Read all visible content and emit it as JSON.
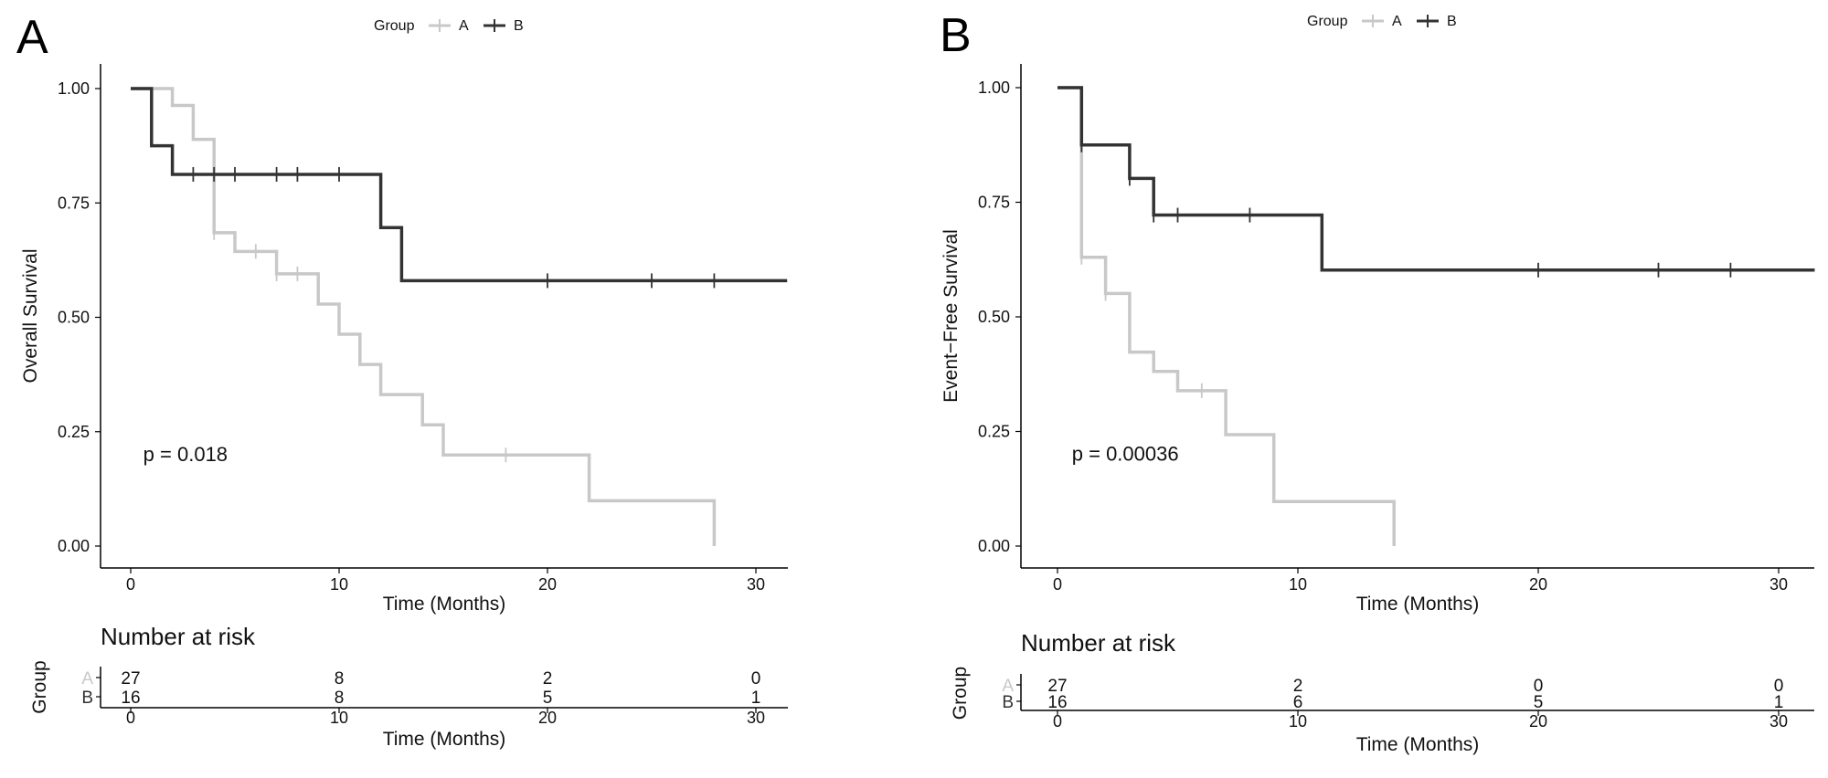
{
  "figure": {
    "colors": {
      "A": "#c8c8c8",
      "B": "#333333",
      "axis": "#000000",
      "text": "#111111"
    }
  },
  "chart_data": [
    {
      "type": "line",
      "step": true,
      "panel_label": "A",
      "ylabel": "Overall Survival",
      "xlabel": "Time (Months)",
      "x_ticks": [
        0,
        10,
        20,
        30
      ],
      "y_ticks": [
        "0.00",
        "0.25",
        "0.50",
        "0.75",
        "1.00"
      ],
      "xlim": [
        -1.5,
        31.5
      ],
      "ylim": [
        -0.05,
        1.05
      ],
      "legend": {
        "title": "Group",
        "position": "top",
        "entries": [
          "A",
          "B"
        ]
      },
      "pvalue": "p = 0.018",
      "series": [
        {
          "name": "A",
          "steps": [
            [
              0,
              1.0
            ],
            [
              2,
              0.963
            ],
            [
              3,
              0.889
            ],
            [
              4,
              0.685
            ],
            [
              5,
              0.644
            ],
            [
              7,
              0.595
            ],
            [
              9,
              0.529
            ],
            [
              10,
              0.463
            ],
            [
              11,
              0.397
            ],
            [
              12,
              0.331
            ],
            [
              14,
              0.265
            ],
            [
              15,
              0.199
            ],
            [
              22,
              0.099
            ],
            [
              28,
              0.0
            ]
          ],
          "end": 28,
          "censors": [
            [
              4,
              0.685
            ],
            [
              6,
              0.644
            ],
            [
              7,
              0.595
            ],
            [
              8,
              0.595
            ],
            [
              18,
              0.199
            ]
          ]
        },
        {
          "name": "B",
          "steps": [
            [
              0,
              1.0
            ],
            [
              1,
              0.875
            ],
            [
              2,
              0.8125
            ],
            [
              12,
              0.696
            ],
            [
              13,
              0.58
            ]
          ],
          "end": 31.5,
          "censors": [
            [
              3,
              0.8125
            ],
            [
              4,
              0.8125
            ],
            [
              5,
              0.8125
            ],
            [
              7,
              0.8125
            ],
            [
              8,
              0.8125
            ],
            [
              10,
              0.8125
            ],
            [
              20,
              0.58
            ],
            [
              25,
              0.58
            ],
            [
              28,
              0.58
            ]
          ]
        }
      ],
      "risk_table": {
        "title": "Number at risk",
        "ylabel": "Group",
        "xlabel": "Time (Months)",
        "times": [
          0,
          10,
          20,
          30
        ],
        "rows": [
          {
            "group": "A",
            "counts": [
              "27",
              "8",
              "2",
              "0"
            ]
          },
          {
            "group": "B",
            "counts": [
              "16",
              "8",
              "5",
              "1"
            ]
          }
        ]
      }
    },
    {
      "type": "line",
      "step": true,
      "panel_label": "B",
      "ylabel": "Event−Free Survival",
      "xlabel": "Time (Months)",
      "x_ticks": [
        0,
        10,
        20,
        30
      ],
      "y_ticks": [
        "0.00",
        "0.25",
        "0.50",
        "0.75",
        "1.00"
      ],
      "xlim": [
        -1.5,
        31.5
      ],
      "ylim": [
        -0.05,
        1.05
      ],
      "legend": {
        "title": "Group",
        "position": "top",
        "entries": [
          "A",
          "B"
        ]
      },
      "pvalue": "p = 0.00036",
      "series": [
        {
          "name": "A",
          "steps": [
            [
              0,
              1.0
            ],
            [
              1,
              0.63
            ],
            [
              2,
              0.551
            ],
            [
              3,
              0.423
            ],
            [
              4,
              0.381
            ],
            [
              5,
              0.339
            ],
            [
              7,
              0.243
            ],
            [
              9,
              0.097
            ],
            [
              14,
              0.0
            ]
          ],
          "end": 14,
          "censors": [
            [
              1,
              0.63
            ],
            [
              2,
              0.551
            ],
            [
              6,
              0.339
            ]
          ]
        },
        {
          "name": "B",
          "steps": [
            [
              0,
              1.0
            ],
            [
              1,
              0.875
            ],
            [
              3,
              0.802
            ],
            [
              4,
              0.722
            ],
            [
              11,
              0.602
            ]
          ],
          "end": 31.5,
          "censors": [
            [
              1,
              0.875
            ],
            [
              3,
              0.802
            ],
            [
              4,
              0.722
            ],
            [
              5,
              0.722
            ],
            [
              8,
              0.722
            ],
            [
              20,
              0.602
            ],
            [
              25,
              0.602
            ],
            [
              28,
              0.602
            ]
          ]
        }
      ],
      "risk_table": {
        "title": "Number at risk",
        "ylabel": "Group",
        "xlabel": "Time (Months)",
        "times": [
          0,
          10,
          20,
          30
        ],
        "rows": [
          {
            "group": "A",
            "counts": [
              "27",
              "2",
              "0",
              "0"
            ]
          },
          {
            "group": "B",
            "counts": [
              "16",
              "6",
              "5",
              "1"
            ]
          }
        ]
      }
    }
  ]
}
